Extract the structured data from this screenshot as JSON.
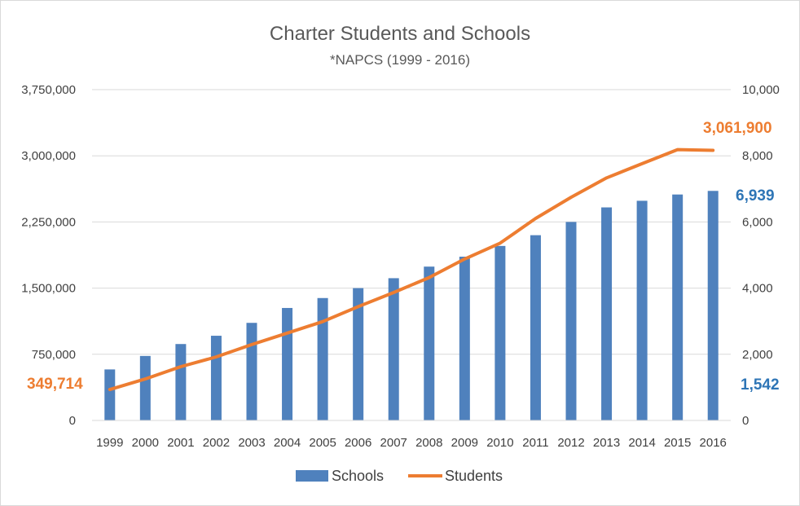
{
  "chart_data": {
    "type": "bar",
    "title": "Charter Students and Schools",
    "subtitle": "*NAPCS (1999 - 2016)",
    "categories": [
      "1999",
      "2000",
      "2001",
      "2002",
      "2003",
      "2004",
      "2005",
      "2006",
      "2007",
      "2008",
      "2009",
      "2010",
      "2011",
      "2012",
      "2013",
      "2014",
      "2015",
      "2016"
    ],
    "series": [
      {
        "name": "Schools",
        "type": "bar",
        "axis": "right",
        "color": "#4f81bd",
        "values": [
          1542,
          1950,
          2310,
          2560,
          2950,
          3400,
          3700,
          4000,
          4300,
          4650,
          4950,
          5275,
          5600,
          6000,
          6440,
          6640,
          6830,
          6939
        ]
      },
      {
        "name": "Students",
        "type": "line",
        "axis": "left",
        "color": "#ed7d31",
        "values": [
          349714,
          470000,
          610000,
          720000,
          860000,
          990000,
          1120000,
          1290000,
          1450000,
          1620000,
          1830000,
          2010000,
          2290000,
          2530000,
          2750000,
          2910000,
          3070000,
          3061900
        ]
      }
    ],
    "y_left": {
      "ylim": [
        0,
        3750000
      ],
      "ticks": [
        "0",
        "750,000",
        "1,500,000",
        "2,250,000",
        "3,000,000",
        "3,750,000"
      ]
    },
    "y_right": {
      "ylim": [
        0,
        10000
      ],
      "ticks": [
        "0",
        "2,000",
        "4,000",
        "6,000",
        "8,000",
        "10,000"
      ]
    },
    "grid": true,
    "legend": {
      "position": "bottom",
      "entries": [
        "Schools",
        "Students"
      ]
    },
    "annotations": {
      "students_start": "349,714",
      "students_end": "3,061,900",
      "schools_start": "1,542",
      "schools_end": "6,939"
    }
  }
}
